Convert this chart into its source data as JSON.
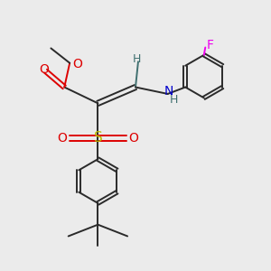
{
  "bg_color": "#ebebeb",
  "bond_color": "#2a2a2a",
  "bond_width": 1.4,
  "colors": {
    "O": "#dd0000",
    "N": "#0000cc",
    "S": "#bbbb00",
    "F": "#ee00ee",
    "H": "#407070",
    "C": "#2a2a2a"
  },
  "fig_size": [
    3.0,
    3.0
  ],
  "dpi": 100
}
